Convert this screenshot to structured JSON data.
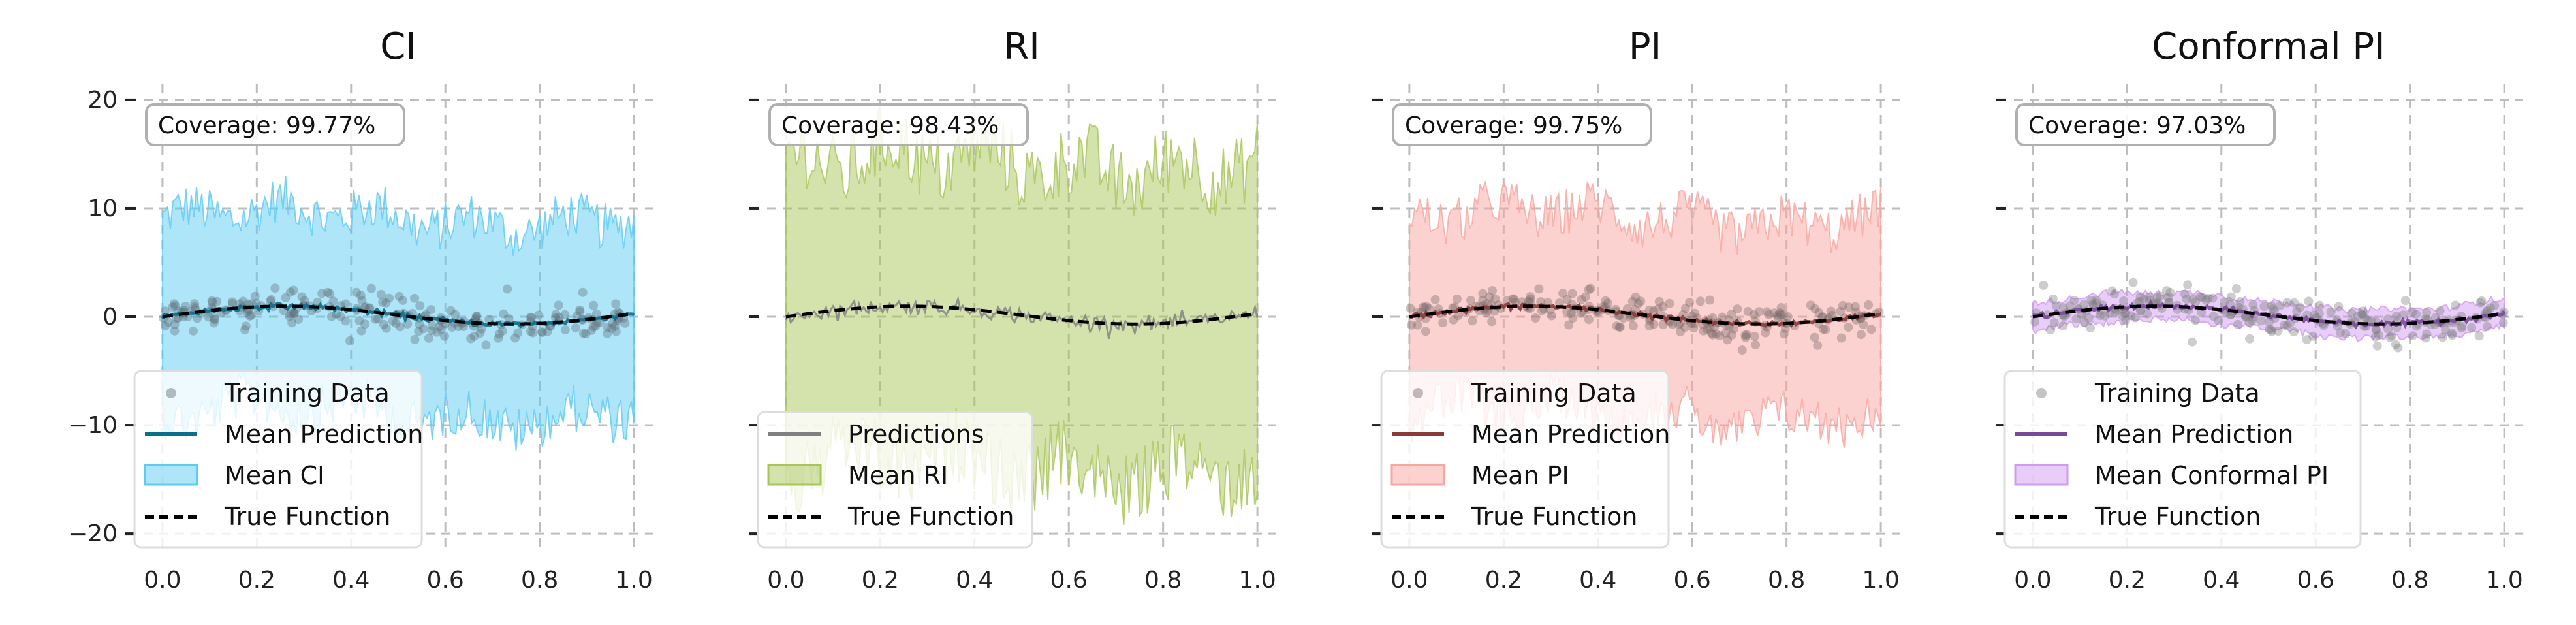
{
  "chart_data": [
    {
      "type": "area",
      "title": "CI",
      "coverage_label": "Coverage: 99.77%",
      "band_color": "#5ecbf2",
      "mean_color": "#0b6e8a",
      "scatter_color": "#5f6f78",
      "band_shape": {
        "half_width": 9,
        "wobble": 2.2
      },
      "xlim": [
        -0.04,
        1.04
      ],
      "ylim": [
        -21.5,
        21.5
      ],
      "xticks": [
        "0.0",
        "0.2",
        "0.4",
        "0.6",
        "0.8",
        "1.0"
      ],
      "yticks": [
        "20",
        "10",
        "0",
        "−10",
        "−20"
      ],
      "legend": [
        {
          "kind": "dot",
          "label": "Training Data"
        },
        {
          "kind": "line",
          "label": "Mean Prediction"
        },
        {
          "kind": "patch",
          "label": "Mean CI"
        },
        {
          "kind": "dash",
          "label": "True Function"
        }
      ]
    },
    {
      "type": "area",
      "title": "RI",
      "coverage_label": "Coverage: 98.43%",
      "band_color": "#a9c55a",
      "mean_color": "#808080",
      "scatter_color": null,
      "band_shape": {
        "half_width": 14,
        "wobble": 3.5
      },
      "xlim": [
        -0.04,
        1.04
      ],
      "ylim": [
        -21.5,
        21.5
      ],
      "xticks": [
        "0.0",
        "0.2",
        "0.4",
        "0.6",
        "0.8",
        "1.0"
      ],
      "yticks": [
        "20",
        "10",
        "0",
        "−10",
        "−20"
      ],
      "legend": [
        {
          "kind": "line",
          "label": "Predictions"
        },
        {
          "kind": "patch",
          "label": "Mean RI"
        },
        {
          "kind": "dash",
          "label": "True Function"
        }
      ]
    },
    {
      "type": "area",
      "title": "PI",
      "coverage_label": "Coverage: 99.75%",
      "band_color": "#f7a6a0",
      "mean_color": "#8b3a3a",
      "scatter_color": "#7a6a68",
      "band_shape": {
        "half_width": 9,
        "wobble": 2.2
      },
      "xlim": [
        -0.04,
        1.04
      ],
      "ylim": [
        -21.5,
        21.5
      ],
      "xticks": [
        "0.0",
        "0.2",
        "0.4",
        "0.6",
        "0.8",
        "1.0"
      ],
      "yticks": [
        "20",
        "10",
        "0",
        "−10",
        "−20"
      ],
      "legend": [
        {
          "kind": "dot",
          "label": "Training Data"
        },
        {
          "kind": "line",
          "label": "Mean Prediction"
        },
        {
          "kind": "patch",
          "label": "Mean PI"
        },
        {
          "kind": "dash",
          "label": "True Function"
        }
      ]
    },
    {
      "type": "area",
      "title": "Conformal PI",
      "coverage_label": "Coverage: 97.03%",
      "band_color": "#cf9cf0",
      "mean_color": "#7a4a9a",
      "scatter_color": "#7c7c7c",
      "band_shape": {
        "half_width": 1.3,
        "wobble": 0.3
      },
      "xlim": [
        -0.04,
        1.04
      ],
      "ylim": [
        -21.5,
        21.5
      ],
      "xticks": [
        "0.0",
        "0.2",
        "0.4",
        "0.6",
        "0.8",
        "1.0"
      ],
      "yticks": [
        "20",
        "10",
        "0",
        "−10",
        "−20"
      ],
      "legend": [
        {
          "kind": "dot",
          "label": "Training Data"
        },
        {
          "kind": "line",
          "label": "Mean Prediction"
        },
        {
          "kind": "patch",
          "label": "Mean Conformal PI"
        },
        {
          "kind": "dash",
          "label": "True Function"
        }
      ]
    }
  ]
}
